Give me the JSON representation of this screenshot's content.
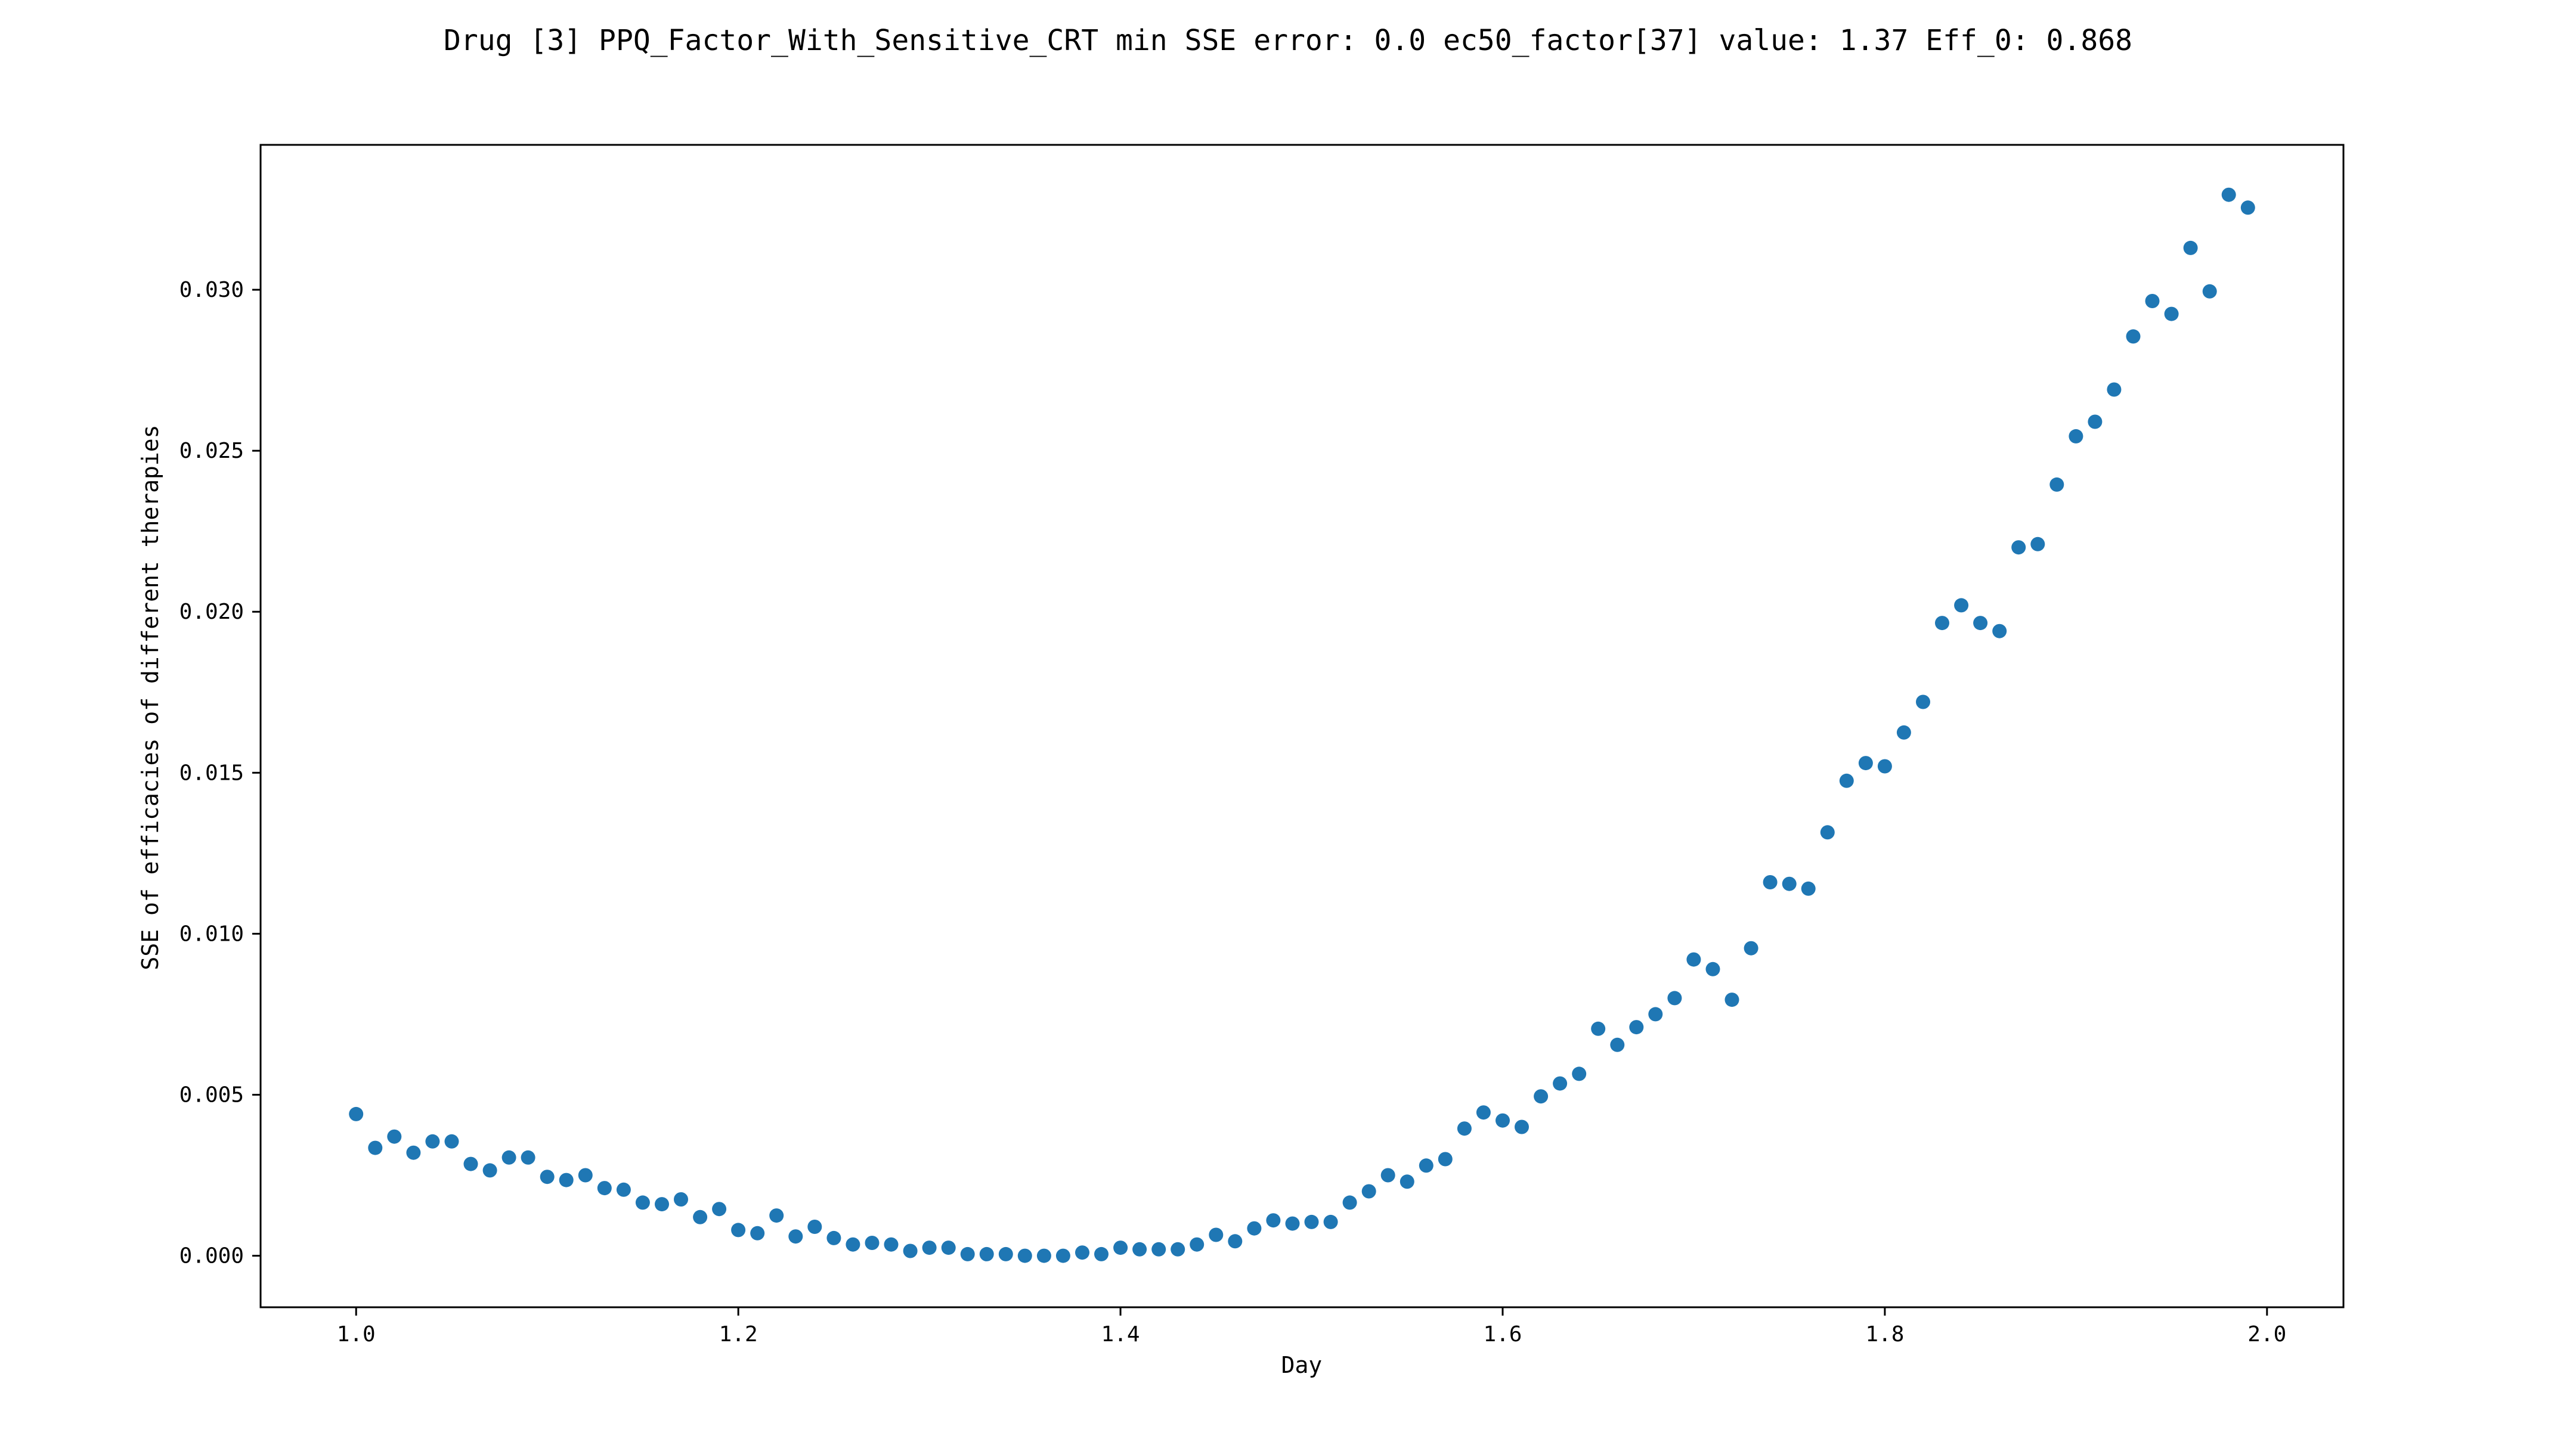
{
  "chart_data": {
    "type": "scatter",
    "title": "Drug [3] PPQ_Factor_With_Sensitive_CRT min SSE error: 0.0 ec50_factor[37] value: 1.37 Eff_0: 0.868",
    "xlabel": "Day",
    "ylabel": "SSE of efficacies of different therapies",
    "xlim": [
      0.95,
      2.04
    ],
    "ylim": [
      -0.0016,
      0.0345
    ],
    "xticks": [
      "1.0",
      "1.2",
      "1.4",
      "1.6",
      "1.8",
      "2.0"
    ],
    "xtick_values": [
      1.0,
      1.2,
      1.4,
      1.6,
      1.8,
      2.0
    ],
    "yticks": [
      "0.000",
      "0.005",
      "0.010",
      "0.015",
      "0.020",
      "0.025",
      "0.030"
    ],
    "ytick_values": [
      0.0,
      0.005,
      0.01,
      0.015,
      0.02,
      0.025,
      0.03
    ],
    "grid": false,
    "marker_color": "#1f77b4",
    "series": [
      {
        "x": [
          1.0,
          1.01,
          1.02,
          1.03,
          1.04,
          1.05,
          1.06,
          1.07,
          1.08,
          1.09,
          1.1,
          1.11,
          1.12,
          1.13,
          1.14,
          1.15,
          1.16,
          1.17,
          1.18,
          1.19,
          1.2,
          1.21,
          1.22,
          1.23,
          1.24,
          1.25,
          1.26,
          1.27,
          1.28,
          1.29,
          1.3,
          1.31,
          1.32,
          1.33,
          1.34,
          1.35,
          1.36,
          1.37,
          1.38,
          1.39,
          1.4,
          1.41,
          1.42,
          1.43,
          1.44,
          1.45,
          1.46,
          1.47,
          1.48,
          1.49,
          1.5,
          1.51,
          1.52,
          1.53,
          1.54,
          1.55,
          1.56,
          1.57,
          1.58,
          1.59,
          1.6,
          1.61,
          1.62,
          1.63,
          1.64,
          1.65,
          1.66,
          1.67,
          1.68,
          1.69,
          1.7,
          1.71,
          1.72,
          1.73,
          1.74,
          1.75,
          1.76,
          1.77,
          1.78,
          1.79,
          1.8,
          1.81,
          1.82,
          1.83,
          1.84,
          1.85,
          1.86,
          1.87,
          1.88,
          1.89,
          1.9,
          1.91,
          1.92,
          1.93,
          1.94,
          1.95,
          1.96,
          1.97,
          1.98,
          1.99
        ],
        "y": [
          0.0044,
          0.00335,
          0.0037,
          0.0032,
          0.00355,
          0.00355,
          0.00285,
          0.00265,
          0.00305,
          0.00305,
          0.00245,
          0.00235,
          0.0025,
          0.0021,
          0.00205,
          0.00165,
          0.0016,
          0.00175,
          0.0012,
          0.00145,
          0.0008,
          0.0007,
          0.00125,
          0.0006,
          0.0009,
          0.00055,
          0.00035,
          0.0004,
          0.00035,
          0.00015,
          0.00025,
          0.00025,
          5e-05,
          5e-05,
          5e-05,
          0.0,
          0.0,
          0.0,
          0.0001,
          5e-05,
          0.00025,
          0.0002,
          0.0002,
          0.0002,
          0.00035,
          0.00065,
          0.00045,
          0.00085,
          0.0011,
          0.001,
          0.00105,
          0.00105,
          0.00165,
          0.002,
          0.0025,
          0.0023,
          0.0028,
          0.003,
          0.00395,
          0.00445,
          0.0042,
          0.004,
          0.00495,
          0.00535,
          0.00565,
          0.00705,
          0.00655,
          0.0071,
          0.0075,
          0.008,
          0.0092,
          0.0089,
          0.00795,
          0.00955,
          0.0116,
          0.01155,
          0.0114,
          0.01315,
          0.01475,
          0.0153,
          0.0152,
          0.01625,
          0.0172,
          0.01965,
          0.0202,
          0.01965,
          0.0194,
          0.022,
          0.0221,
          0.02395,
          0.02545,
          0.0259,
          0.0269,
          0.02855,
          0.02965,
          0.02925,
          0.0313,
          0.02995,
          0.03295,
          0.03255
        ]
      }
    ]
  }
}
